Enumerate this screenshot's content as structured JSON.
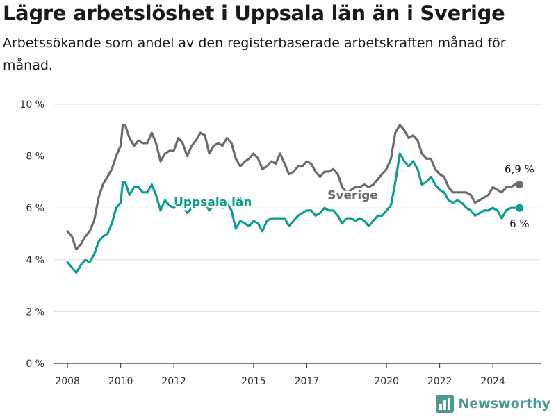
{
  "title": "Lägre arbetslöshet i Uppsala län än i Sverige",
  "subtitle": "Arbetssökande som andel av den registerbaserade arbetskraften månad för månad.",
  "brand": {
    "name": "Newsworthy",
    "color": "#4c9c8e",
    "icon": "newsworthy-chart-logo-icon"
  },
  "colors": {
    "sverige": "#6b6b6e",
    "uppsala": "#0d9e8e",
    "grid": "#dddddd",
    "axis": "#333333",
    "text": "#333333"
  },
  "chart_data": {
    "type": "line",
    "ylim": [
      0,
      10
    ],
    "xlim": [
      2007.5,
      2025.8
    ],
    "y_ticks": [
      {
        "value": 0,
        "label": "0 %"
      },
      {
        "value": 2,
        "label": "2 %"
      },
      {
        "value": 4,
        "label": "4 %"
      },
      {
        "value": 6,
        "label": "6 %"
      },
      {
        "value": 8,
        "label": "8 %"
      },
      {
        "value": 10,
        "label": "10 %"
      }
    ],
    "x_ticks": [
      {
        "value": 2008,
        "label": "2008"
      },
      {
        "value": 2010,
        "label": "2010"
      },
      {
        "value": 2012,
        "label": "2012"
      },
      {
        "value": 2015,
        "label": "2015"
      },
      {
        "value": 2017,
        "label": "2017"
      },
      {
        "value": 2020,
        "label": "2020"
      },
      {
        "value": 2022,
        "label": "2022"
      },
      {
        "value": 2024,
        "label": "2024"
      }
    ],
    "grid": true,
    "series": [
      {
        "key": "sverige",
        "name": "Sverige",
        "color": "#6b6b6e",
        "end_label": "6,9 %",
        "points": [
          [
            2008.0,
            5.1
          ],
          [
            2008.17,
            4.9
          ],
          [
            2008.33,
            4.4
          ],
          [
            2008.5,
            4.6
          ],
          [
            2008.67,
            4.9
          ],
          [
            2008.83,
            5.1
          ],
          [
            2009.0,
            5.5
          ],
          [
            2009.17,
            6.4
          ],
          [
            2009.33,
            6.9
          ],
          [
            2009.5,
            7.2
          ],
          [
            2009.67,
            7.5
          ],
          [
            2009.83,
            8.0
          ],
          [
            2010.0,
            8.4
          ],
          [
            2010.08,
            9.2
          ],
          [
            2010.17,
            9.2
          ],
          [
            2010.33,
            8.7
          ],
          [
            2010.5,
            8.4
          ],
          [
            2010.67,
            8.6
          ],
          [
            2010.83,
            8.5
          ],
          [
            2011.0,
            8.5
          ],
          [
            2011.17,
            8.9
          ],
          [
            2011.33,
            8.5
          ],
          [
            2011.5,
            7.8
          ],
          [
            2011.67,
            8.1
          ],
          [
            2011.83,
            8.2
          ],
          [
            2012.0,
            8.2
          ],
          [
            2012.17,
            8.7
          ],
          [
            2012.33,
            8.5
          ],
          [
            2012.5,
            8.0
          ],
          [
            2012.67,
            8.4
          ],
          [
            2012.83,
            8.6
          ],
          [
            2013.0,
            8.9
          ],
          [
            2013.17,
            8.8
          ],
          [
            2013.33,
            8.1
          ],
          [
            2013.5,
            8.4
          ],
          [
            2013.67,
            8.5
          ],
          [
            2013.83,
            8.4
          ],
          [
            2014.0,
            8.7
          ],
          [
            2014.17,
            8.5
          ],
          [
            2014.33,
            7.9
          ],
          [
            2014.5,
            7.6
          ],
          [
            2014.67,
            7.8
          ],
          [
            2014.83,
            7.9
          ],
          [
            2015.0,
            8.1
          ],
          [
            2015.17,
            7.9
          ],
          [
            2015.33,
            7.5
          ],
          [
            2015.5,
            7.6
          ],
          [
            2015.67,
            7.8
          ],
          [
            2015.83,
            7.7
          ],
          [
            2016.0,
            8.1
          ],
          [
            2016.17,
            7.7
          ],
          [
            2016.33,
            7.3
          ],
          [
            2016.5,
            7.4
          ],
          [
            2016.67,
            7.6
          ],
          [
            2016.83,
            7.6
          ],
          [
            2017.0,
            7.8
          ],
          [
            2017.17,
            7.7
          ],
          [
            2017.33,
            7.4
          ],
          [
            2017.5,
            7.2
          ],
          [
            2017.67,
            7.4
          ],
          [
            2017.83,
            7.4
          ],
          [
            2018.0,
            7.5
          ],
          [
            2018.17,
            7.3
          ],
          [
            2018.33,
            6.8
          ],
          [
            2018.5,
            6.6
          ],
          [
            2018.67,
            6.7
          ],
          [
            2018.83,
            6.8
          ],
          [
            2019.0,
            6.8
          ],
          [
            2019.17,
            6.9
          ],
          [
            2019.33,
            6.8
          ],
          [
            2019.5,
            6.9
          ],
          [
            2019.67,
            7.1
          ],
          [
            2019.83,
            7.3
          ],
          [
            2020.0,
            7.5
          ],
          [
            2020.17,
            7.9
          ],
          [
            2020.33,
            8.9
          ],
          [
            2020.5,
            9.2
          ],
          [
            2020.67,
            9.0
          ],
          [
            2020.83,
            8.7
          ],
          [
            2021.0,
            8.8
          ],
          [
            2021.17,
            8.6
          ],
          [
            2021.33,
            8.1
          ],
          [
            2021.5,
            7.9
          ],
          [
            2021.67,
            7.9
          ],
          [
            2021.83,
            7.5
          ],
          [
            2022.0,
            7.3
          ],
          [
            2022.17,
            7.2
          ],
          [
            2022.33,
            6.8
          ],
          [
            2022.5,
            6.6
          ],
          [
            2022.67,
            6.6
          ],
          [
            2022.83,
            6.6
          ],
          [
            2023.0,
            6.6
          ],
          [
            2023.17,
            6.5
          ],
          [
            2023.33,
            6.2
          ],
          [
            2023.5,
            6.3
          ],
          [
            2023.67,
            6.4
          ],
          [
            2023.83,
            6.5
          ],
          [
            2024.0,
            6.8
          ],
          [
            2024.17,
            6.7
          ],
          [
            2024.33,
            6.6
          ],
          [
            2024.5,
            6.8
          ],
          [
            2024.67,
            6.8
          ],
          [
            2024.83,
            6.9
          ],
          [
            2025.0,
            6.9
          ]
        ]
      },
      {
        "key": "uppsala",
        "name": "Uppsala län",
        "color": "#0d9e8e",
        "end_label": "6 %",
        "points": [
          [
            2008.0,
            3.9
          ],
          [
            2008.17,
            3.7
          ],
          [
            2008.33,
            3.5
          ],
          [
            2008.5,
            3.8
          ],
          [
            2008.67,
            4.0
          ],
          [
            2008.83,
            3.9
          ],
          [
            2009.0,
            4.2
          ],
          [
            2009.17,
            4.7
          ],
          [
            2009.33,
            4.9
          ],
          [
            2009.5,
            5.0
          ],
          [
            2009.67,
            5.4
          ],
          [
            2009.83,
            6.0
          ],
          [
            2010.0,
            6.2
          ],
          [
            2010.08,
            7.0
          ],
          [
            2010.17,
            7.0
          ],
          [
            2010.33,
            6.5
          ],
          [
            2010.5,
            6.8
          ],
          [
            2010.67,
            6.8
          ],
          [
            2010.83,
            6.6
          ],
          [
            2011.0,
            6.6
          ],
          [
            2011.17,
            6.9
          ],
          [
            2011.33,
            6.5
          ],
          [
            2011.5,
            5.9
          ],
          [
            2011.67,
            6.3
          ],
          [
            2011.83,
            6.1
          ],
          [
            2012.0,
            6.0
          ],
          [
            2012.17,
            6.2
          ],
          [
            2012.33,
            6.1
          ],
          [
            2012.5,
            5.8
          ],
          [
            2012.67,
            6.0
          ],
          [
            2012.83,
            6.1
          ],
          [
            2013.0,
            6.3
          ],
          [
            2013.17,
            6.2
          ],
          [
            2013.33,
            5.9
          ],
          [
            2013.5,
            6.1
          ],
          [
            2013.67,
            6.2
          ],
          [
            2013.83,
            6.0
          ],
          [
            2014.0,
            6.2
          ],
          [
            2014.17,
            5.9
          ],
          [
            2014.33,
            5.2
          ],
          [
            2014.5,
            5.5
          ],
          [
            2014.67,
            5.4
          ],
          [
            2014.83,
            5.3
          ],
          [
            2015.0,
            5.5
          ],
          [
            2015.17,
            5.4
          ],
          [
            2015.33,
            5.1
          ],
          [
            2015.5,
            5.5
          ],
          [
            2015.67,
            5.6
          ],
          [
            2015.83,
            5.6
          ],
          [
            2016.0,
            5.6
          ],
          [
            2016.17,
            5.6
          ],
          [
            2016.33,
            5.3
          ],
          [
            2016.5,
            5.5
          ],
          [
            2016.67,
            5.7
          ],
          [
            2016.83,
            5.8
          ],
          [
            2017.0,
            5.9
          ],
          [
            2017.17,
            5.9
          ],
          [
            2017.33,
            5.7
          ],
          [
            2017.5,
            5.8
          ],
          [
            2017.67,
            6.0
          ],
          [
            2017.83,
            5.9
          ],
          [
            2018.0,
            5.9
          ],
          [
            2018.17,
            5.7
          ],
          [
            2018.33,
            5.4
          ],
          [
            2018.5,
            5.6
          ],
          [
            2018.67,
            5.6
          ],
          [
            2018.83,
            5.5
          ],
          [
            2019.0,
            5.6
          ],
          [
            2019.17,
            5.5
          ],
          [
            2019.33,
            5.3
          ],
          [
            2019.5,
            5.5
          ],
          [
            2019.67,
            5.7
          ],
          [
            2019.83,
            5.7
          ],
          [
            2020.0,
            5.9
          ],
          [
            2020.17,
            6.1
          ],
          [
            2020.33,
            7.0
          ],
          [
            2020.5,
            8.1
          ],
          [
            2020.67,
            7.8
          ],
          [
            2020.83,
            7.6
          ],
          [
            2021.0,
            7.8
          ],
          [
            2021.17,
            7.5
          ],
          [
            2021.33,
            6.9
          ],
          [
            2021.5,
            7.0
          ],
          [
            2021.67,
            7.2
          ],
          [
            2021.83,
            6.9
          ],
          [
            2022.0,
            6.7
          ],
          [
            2022.17,
            6.6
          ],
          [
            2022.33,
            6.3
          ],
          [
            2022.5,
            6.2
          ],
          [
            2022.67,
            6.3
          ],
          [
            2022.83,
            6.2
          ],
          [
            2023.0,
            6.0
          ],
          [
            2023.17,
            5.9
          ],
          [
            2023.33,
            5.7
          ],
          [
            2023.5,
            5.8
          ],
          [
            2023.67,
            5.9
          ],
          [
            2023.83,
            5.9
          ],
          [
            2024.0,
            6.0
          ],
          [
            2024.17,
            5.9
          ],
          [
            2024.33,
            5.6
          ],
          [
            2024.5,
            5.9
          ],
          [
            2024.67,
            6.0
          ],
          [
            2024.83,
            6.0
          ],
          [
            2025.0,
            6.0
          ]
        ]
      }
    ]
  }
}
